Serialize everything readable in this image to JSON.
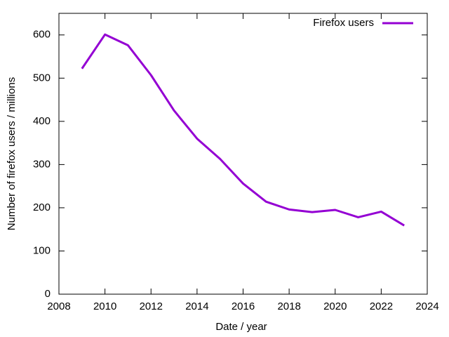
{
  "chart_data": {
    "type": "line",
    "x_label": "Date / year",
    "y_label": "Number of firefox users / millions",
    "x": [
      2009,
      2010,
      2011,
      2012,
      2013,
      2014,
      2015,
      2016,
      2017,
      2018,
      2019,
      2020,
      2021,
      2022,
      2023
    ],
    "series": [
      {
        "name": "Firefox users",
        "color": "#9400d3",
        "values": [
          522,
          601,
          576,
          507,
          425,
          360,
          313,
          256,
          214,
          196,
          190,
          195,
          178,
          191,
          159
        ]
      }
    ],
    "xlim": [
      2008,
      2024
    ],
    "xticks": [
      2008,
      2010,
      2012,
      2014,
      2016,
      2018,
      2020,
      2022,
      2024
    ],
    "ylim": [
      0,
      650
    ],
    "yticks": [
      0,
      100,
      200,
      300,
      400,
      500,
      600
    ],
    "legend": "top-right"
  }
}
